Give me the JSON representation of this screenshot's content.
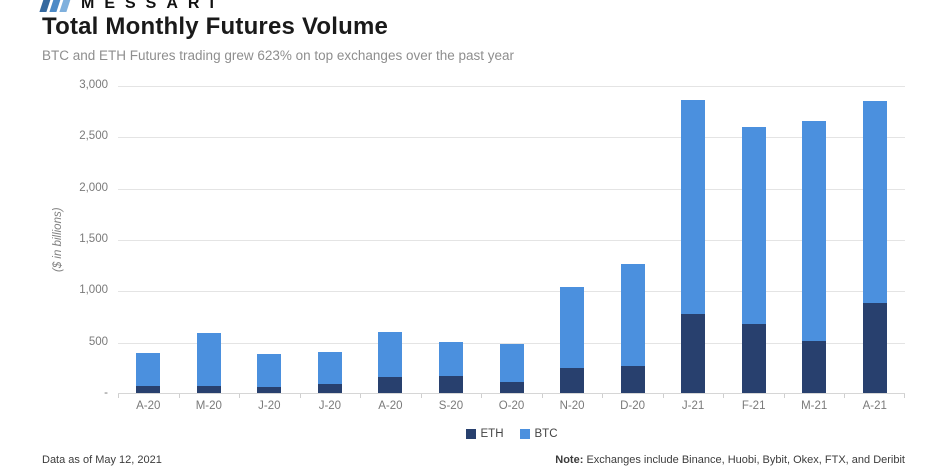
{
  "logo": {
    "brand": "MESSARI"
  },
  "header": {
    "title": "Total Monthly Futures Volume",
    "subtitle": "BTC and ETH Futures trading grew 623% on top exchanges over the past year"
  },
  "chart_data": {
    "type": "bar",
    "stacked": true,
    "title": "Total Monthly Futures Volume",
    "categories": [
      "A-20",
      "M-20",
      "J-20",
      "J-20",
      "A-20",
      "S-20",
      "O-20",
      "N-20",
      "D-20",
      "J-21",
      "F-21",
      "M-21",
      "A-21"
    ],
    "series": [
      {
        "name": "ETH",
        "color": "#28406e",
        "values": [
          65,
          70,
          60,
          90,
          155,
          170,
          110,
          245,
          260,
          765,
          675,
          505,
          880
        ]
      },
      {
        "name": "BTC",
        "color": "#4b90de",
        "values": [
          325,
          515,
          320,
          310,
          435,
          330,
          370,
          790,
          995,
          2090,
          1915,
          2140,
          1965
        ]
      }
    ],
    "totals": [
      390,
      585,
      380,
      400,
      590,
      500,
      480,
      1035,
      1255,
      2855,
      2590,
      2645,
      2845
    ],
    "xlabel": "",
    "ylabel": "($ in billions)",
    "ylim": [
      0,
      3000
    ],
    "yticks": [
      {
        "value": 0,
        "label": "-"
      },
      {
        "value": 500,
        "label": "500"
      },
      {
        "value": 1000,
        "label": "1,000"
      },
      {
        "value": 1500,
        "label": "1,500"
      },
      {
        "value": 2000,
        "label": "2,000"
      },
      {
        "value": 2500,
        "label": "2,500"
      },
      {
        "value": 3000,
        "label": "3,000"
      }
    ],
    "grid": true,
    "legend_position": "bottom"
  },
  "footer": {
    "left": "Data as of May 12, 2021",
    "note_label": "Note:",
    "note_text": "Exchanges include Binance, Huobi, Bybit, Okex, FTX, and Deribit"
  }
}
